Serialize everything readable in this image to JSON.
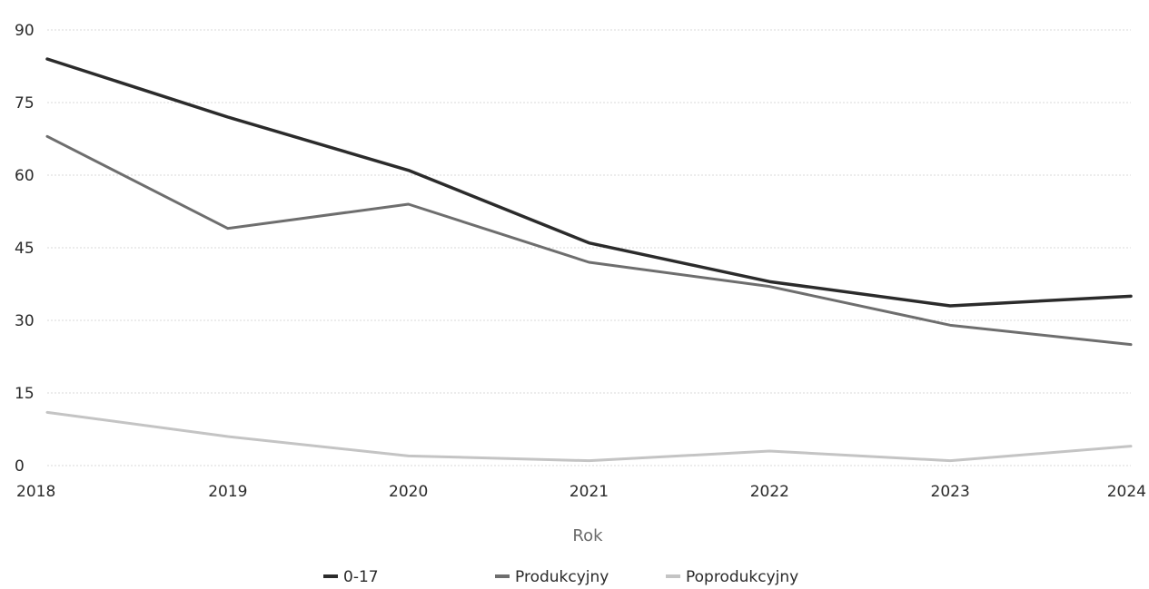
{
  "chart_data": {
    "type": "line",
    "xlabel": "Rok",
    "ylabel": "",
    "categories": [
      "2018",
      "2019",
      "2020",
      "2021",
      "2022",
      "2023",
      "2024"
    ],
    "ylim": [
      0,
      90
    ],
    "yticks": [
      0,
      15,
      30,
      45,
      60,
      75,
      90
    ],
    "grid": true,
    "legend_position": "bottom",
    "series": [
      {
        "name": "0-17",
        "color": "#2b2b2b",
        "values": [
          84,
          72,
          61,
          46,
          38,
          33,
          35
        ]
      },
      {
        "name": "Produkcyjny",
        "color": "#6e6e6e",
        "values": [
          68,
          49,
          54,
          42,
          37,
          29,
          25
        ]
      },
      {
        "name": "Poprodukcyjny",
        "color": "#c4c4c4",
        "values": [
          11,
          6,
          2,
          1,
          3,
          1,
          4
        ]
      }
    ]
  }
}
